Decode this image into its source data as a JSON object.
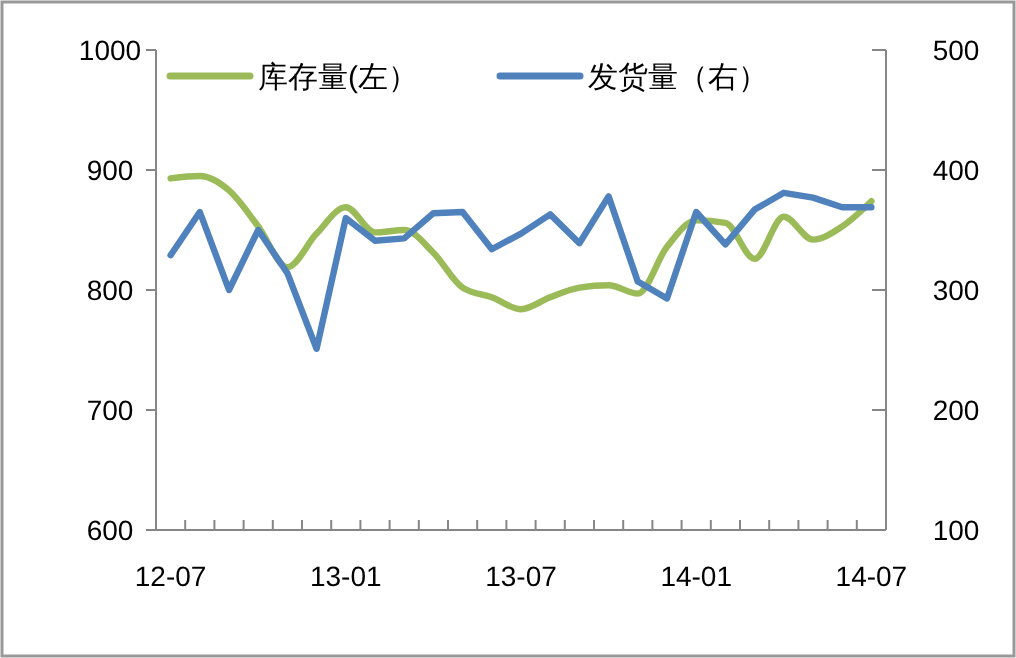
{
  "chart_data": {
    "type": "line",
    "categories": [
      "12-07",
      null,
      null,
      null,
      null,
      null,
      "13-01",
      null,
      null,
      null,
      null,
      null,
      "13-07",
      null,
      null,
      null,
      null,
      null,
      "14-01",
      null,
      null,
      null,
      null,
      null,
      "14-07"
    ],
    "series": [
      {
        "name": "库存量(左）",
        "color": "#9bbb59",
        "values": [
          893,
          895,
          883,
          853,
          819,
          847,
          869,
          848,
          850,
          831,
          802,
          794,
          784,
          794,
          802,
          804,
          797,
          836,
          858,
          856,
          826,
          861,
          842,
          853,
          874
        ]
      },
      {
        "name": "发货量（右）",
        "color": "#4f81bd",
        "axis": "y2",
        "values": [
          329,
          365,
          300,
          350,
          314,
          251,
          360,
          341,
          343,
          364,
          365,
          334,
          347,
          363,
          339,
          378,
          307,
          293,
          365,
          338,
          367,
          381,
          377,
          369,
          369
        ]
      }
    ],
    "ylim": [
      600,
      1000
    ],
    "yticks": [
      600,
      700,
      800,
      900,
      1000
    ],
    "y2lim": [
      100,
      500
    ],
    "y2ticks": [
      100,
      200,
      300,
      400,
      500
    ],
    "legend": "top",
    "grid": false
  }
}
